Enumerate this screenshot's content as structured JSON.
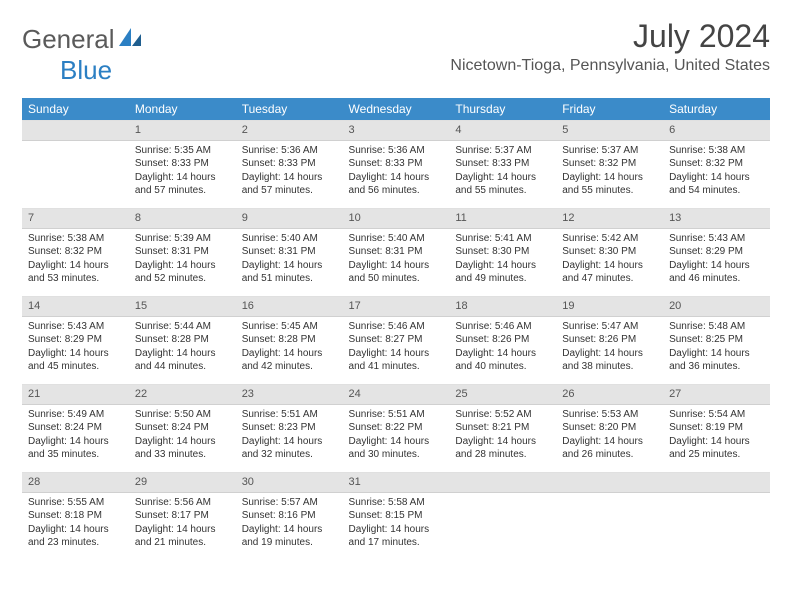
{
  "logo": {
    "text1": "General",
    "text2": "Blue"
  },
  "title": "July 2024",
  "location": "Nicetown-Tioga, Pennsylvania, United States",
  "colors": {
    "header_bg": "#3b8bc9",
    "header_text": "#ffffff",
    "daynum_bg": "#e4e4e4",
    "text": "#333333",
    "logo_gray": "#5a5a5a",
    "logo_blue": "#2b7fc3"
  },
  "weekdays": [
    "Sunday",
    "Monday",
    "Tuesday",
    "Wednesday",
    "Thursday",
    "Friday",
    "Saturday"
  ],
  "weeks": [
    [
      null,
      {
        "n": "1",
        "sr": "Sunrise: 5:35 AM",
        "ss": "Sunset: 8:33 PM",
        "d1": "Daylight: 14 hours",
        "d2": "and 57 minutes."
      },
      {
        "n": "2",
        "sr": "Sunrise: 5:36 AM",
        "ss": "Sunset: 8:33 PM",
        "d1": "Daylight: 14 hours",
        "d2": "and 57 minutes."
      },
      {
        "n": "3",
        "sr": "Sunrise: 5:36 AM",
        "ss": "Sunset: 8:33 PM",
        "d1": "Daylight: 14 hours",
        "d2": "and 56 minutes."
      },
      {
        "n": "4",
        "sr": "Sunrise: 5:37 AM",
        "ss": "Sunset: 8:33 PM",
        "d1": "Daylight: 14 hours",
        "d2": "and 55 minutes."
      },
      {
        "n": "5",
        "sr": "Sunrise: 5:37 AM",
        "ss": "Sunset: 8:32 PM",
        "d1": "Daylight: 14 hours",
        "d2": "and 55 minutes."
      },
      {
        "n": "6",
        "sr": "Sunrise: 5:38 AM",
        "ss": "Sunset: 8:32 PM",
        "d1": "Daylight: 14 hours",
        "d2": "and 54 minutes."
      }
    ],
    [
      {
        "n": "7",
        "sr": "Sunrise: 5:38 AM",
        "ss": "Sunset: 8:32 PM",
        "d1": "Daylight: 14 hours",
        "d2": "and 53 minutes."
      },
      {
        "n": "8",
        "sr": "Sunrise: 5:39 AM",
        "ss": "Sunset: 8:31 PM",
        "d1": "Daylight: 14 hours",
        "d2": "and 52 minutes."
      },
      {
        "n": "9",
        "sr": "Sunrise: 5:40 AM",
        "ss": "Sunset: 8:31 PM",
        "d1": "Daylight: 14 hours",
        "d2": "and 51 minutes."
      },
      {
        "n": "10",
        "sr": "Sunrise: 5:40 AM",
        "ss": "Sunset: 8:31 PM",
        "d1": "Daylight: 14 hours",
        "d2": "and 50 minutes."
      },
      {
        "n": "11",
        "sr": "Sunrise: 5:41 AM",
        "ss": "Sunset: 8:30 PM",
        "d1": "Daylight: 14 hours",
        "d2": "and 49 minutes."
      },
      {
        "n": "12",
        "sr": "Sunrise: 5:42 AM",
        "ss": "Sunset: 8:30 PM",
        "d1": "Daylight: 14 hours",
        "d2": "and 47 minutes."
      },
      {
        "n": "13",
        "sr": "Sunrise: 5:43 AM",
        "ss": "Sunset: 8:29 PM",
        "d1": "Daylight: 14 hours",
        "d2": "and 46 minutes."
      }
    ],
    [
      {
        "n": "14",
        "sr": "Sunrise: 5:43 AM",
        "ss": "Sunset: 8:29 PM",
        "d1": "Daylight: 14 hours",
        "d2": "and 45 minutes."
      },
      {
        "n": "15",
        "sr": "Sunrise: 5:44 AM",
        "ss": "Sunset: 8:28 PM",
        "d1": "Daylight: 14 hours",
        "d2": "and 44 minutes."
      },
      {
        "n": "16",
        "sr": "Sunrise: 5:45 AM",
        "ss": "Sunset: 8:28 PM",
        "d1": "Daylight: 14 hours",
        "d2": "and 42 minutes."
      },
      {
        "n": "17",
        "sr": "Sunrise: 5:46 AM",
        "ss": "Sunset: 8:27 PM",
        "d1": "Daylight: 14 hours",
        "d2": "and 41 minutes."
      },
      {
        "n": "18",
        "sr": "Sunrise: 5:46 AM",
        "ss": "Sunset: 8:26 PM",
        "d1": "Daylight: 14 hours",
        "d2": "and 40 minutes."
      },
      {
        "n": "19",
        "sr": "Sunrise: 5:47 AM",
        "ss": "Sunset: 8:26 PM",
        "d1": "Daylight: 14 hours",
        "d2": "and 38 minutes."
      },
      {
        "n": "20",
        "sr": "Sunrise: 5:48 AM",
        "ss": "Sunset: 8:25 PM",
        "d1": "Daylight: 14 hours",
        "d2": "and 36 minutes."
      }
    ],
    [
      {
        "n": "21",
        "sr": "Sunrise: 5:49 AM",
        "ss": "Sunset: 8:24 PM",
        "d1": "Daylight: 14 hours",
        "d2": "and 35 minutes."
      },
      {
        "n": "22",
        "sr": "Sunrise: 5:50 AM",
        "ss": "Sunset: 8:24 PM",
        "d1": "Daylight: 14 hours",
        "d2": "and 33 minutes."
      },
      {
        "n": "23",
        "sr": "Sunrise: 5:51 AM",
        "ss": "Sunset: 8:23 PM",
        "d1": "Daylight: 14 hours",
        "d2": "and 32 minutes."
      },
      {
        "n": "24",
        "sr": "Sunrise: 5:51 AM",
        "ss": "Sunset: 8:22 PM",
        "d1": "Daylight: 14 hours",
        "d2": "and 30 minutes."
      },
      {
        "n": "25",
        "sr": "Sunrise: 5:52 AM",
        "ss": "Sunset: 8:21 PM",
        "d1": "Daylight: 14 hours",
        "d2": "and 28 minutes."
      },
      {
        "n": "26",
        "sr": "Sunrise: 5:53 AM",
        "ss": "Sunset: 8:20 PM",
        "d1": "Daylight: 14 hours",
        "d2": "and 26 minutes."
      },
      {
        "n": "27",
        "sr": "Sunrise: 5:54 AM",
        "ss": "Sunset: 8:19 PM",
        "d1": "Daylight: 14 hours",
        "d2": "and 25 minutes."
      }
    ],
    [
      {
        "n": "28",
        "sr": "Sunrise: 5:55 AM",
        "ss": "Sunset: 8:18 PM",
        "d1": "Daylight: 14 hours",
        "d2": "and 23 minutes."
      },
      {
        "n": "29",
        "sr": "Sunrise: 5:56 AM",
        "ss": "Sunset: 8:17 PM",
        "d1": "Daylight: 14 hours",
        "d2": "and 21 minutes."
      },
      {
        "n": "30",
        "sr": "Sunrise: 5:57 AM",
        "ss": "Sunset: 8:16 PM",
        "d1": "Daylight: 14 hours",
        "d2": "and 19 minutes."
      },
      {
        "n": "31",
        "sr": "Sunrise: 5:58 AM",
        "ss": "Sunset: 8:15 PM",
        "d1": "Daylight: 14 hours",
        "d2": "and 17 minutes."
      },
      null,
      null,
      null
    ]
  ]
}
